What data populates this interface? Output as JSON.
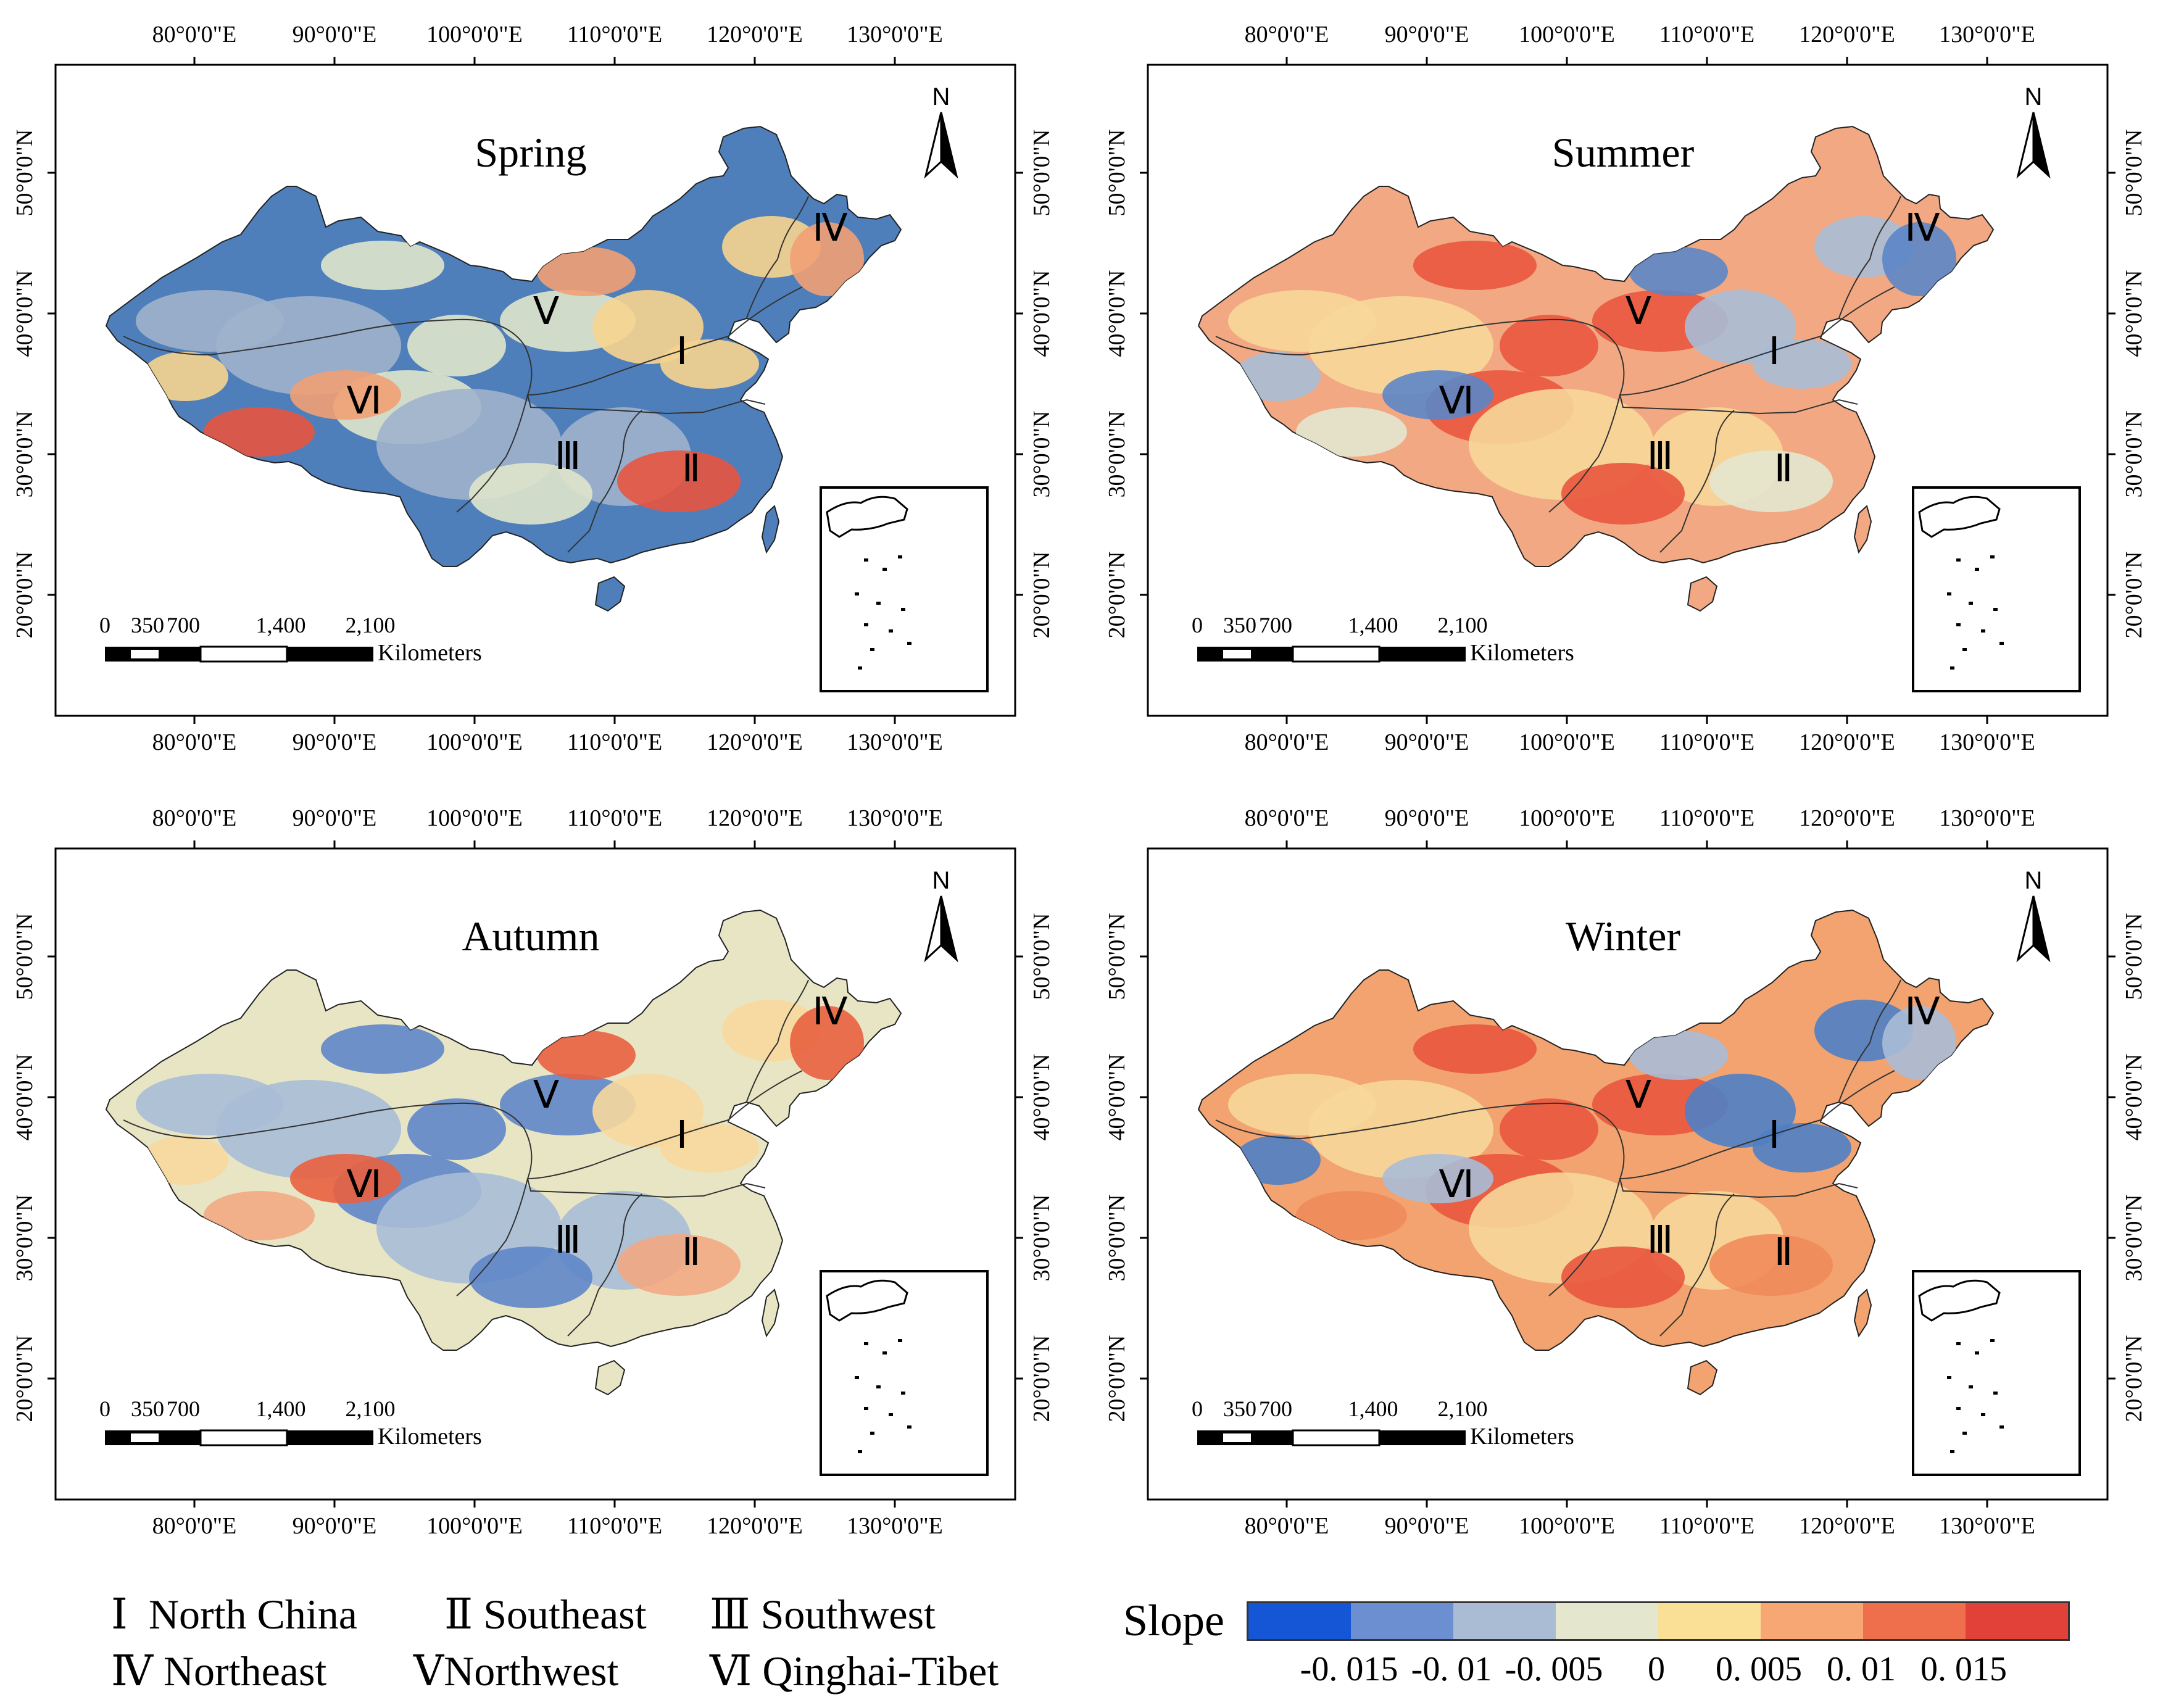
{
  "panels": [
    {
      "title": "Spring",
      "base_color": "#4f7fbb",
      "patch_colors": [
        "#9eb3cc",
        "#dfe5cc",
        "#f6d48f",
        "#f1a074",
        "#e7553f"
      ]
    },
    {
      "title": "Summer",
      "base_color": "#f2a983",
      "patch_colors": [
        "#f7d79a",
        "#e9573e",
        "#a9bdd6",
        "#5c86c6",
        "#e3e7cf"
      ]
    },
    {
      "title": "Autumn",
      "base_color": "#e8e5c5",
      "patch_colors": [
        "#a9bdd6",
        "#5f86c9",
        "#f7d89c",
        "#e9613f",
        "#f2a983"
      ]
    },
    {
      "title": "Winter",
      "base_color": "#f2a36f",
      "patch_colors": [
        "#f7d79a",
        "#e9573e",
        "#4f80c4",
        "#a9bdd6",
        "#f08b5a"
      ]
    }
  ],
  "axes": {
    "lon_ticks": [
      "80°0'0\"E",
      "90°0'0\"E",
      "100°0'0\"E",
      "110°0'0\"E",
      "120°0'0\"E",
      "130°0'0\"E"
    ],
    "lat_ticks": [
      "50°0'0\"N",
      "40°0'0\"N",
      "30°0'0\"N",
      "20°0'0\"N"
    ]
  },
  "map_labels": {
    "regions": [
      "Ⅰ",
      "Ⅱ",
      "Ⅲ",
      "Ⅳ",
      "Ⅴ",
      "Ⅵ"
    ],
    "north_arrow": "N",
    "scale_ticks": [
      "0",
      "350",
      "700",
      "1,400",
      "2,100"
    ],
    "scale_unit": "Kilometers"
  },
  "region_legend": {
    "rows": [
      [
        {
          "numeral": "Ⅰ",
          "name": "North China"
        },
        {
          "numeral": "Ⅱ",
          "name": "Southeast"
        },
        {
          "numeral": "Ⅲ",
          "name": "Southwest"
        }
      ],
      [
        {
          "numeral": "Ⅳ",
          "name": "Northeast"
        },
        {
          "numeral": "Ⅴ",
          "name": "Northwest"
        },
        {
          "numeral": "Ⅵ",
          "name": "Qinghai-Tibet"
        }
      ]
    ]
  },
  "slope_legend": {
    "title": "Slope",
    "colors": [
      "#1456d6",
      "#6b8fd1",
      "#a9bcd3",
      "#e4e7cd",
      "#fae096",
      "#f6a773",
      "#ef6e4c",
      "#e2413a"
    ],
    "tick_labels": [
      "-0. 015",
      "-0. 01",
      "-0. 005",
      "0",
      "0. 005",
      "0. 01",
      "0. 015"
    ]
  }
}
